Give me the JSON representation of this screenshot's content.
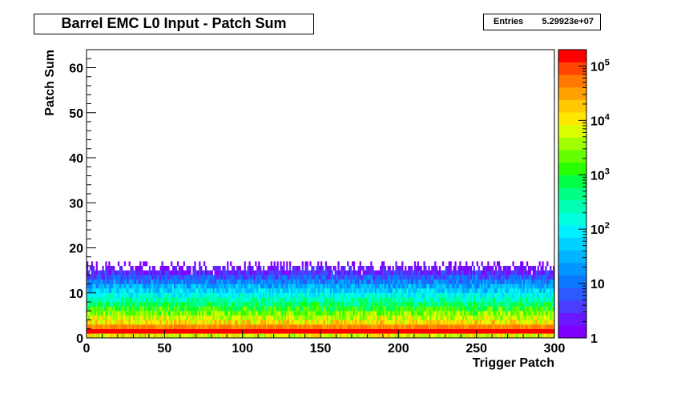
{
  "chart_data": {
    "type": "heatmap",
    "title": "Barrel EMC L0 Input - Patch Sum",
    "xlabel": "Trigger Patch",
    "ylabel": "Patch Sum",
    "xlim": [
      0,
      300
    ],
    "ylim": [
      0,
      64
    ],
    "x_ticks": [
      "0",
      "50",
      "100",
      "150",
      "200",
      "250",
      "300"
    ],
    "y_ticks": [
      "0",
      "10",
      "20",
      "30",
      "40",
      "50",
      "60"
    ],
    "z_scale": "log",
    "z_range": [
      1,
      200000
    ],
    "z_ticks": [
      {
        "value": 1,
        "base": "1",
        "exp": ""
      },
      {
        "value": 10,
        "base": "10",
        "exp": ""
      },
      {
        "value": 100,
        "base": "10",
        "exp": "2"
      },
      {
        "value": 1000,
        "base": "10",
        "exp": "3"
      },
      {
        "value": 10000,
        "base": "10",
        "exp": "4"
      },
      {
        "value": 100000,
        "base": "10",
        "exp": "5"
      }
    ],
    "palette": [
      "#7f00ff",
      "#6a18ff",
      "#4b3cff",
      "#2d5aff",
      "#0a78ff",
      "#0096ff",
      "#00b4ff",
      "#00d2ff",
      "#00f0ff",
      "#00ffdc",
      "#00ffb4",
      "#00ff82",
      "#00ff46",
      "#28ff00",
      "#64ff00",
      "#a0ff00",
      "#dcff00",
      "#ffe600",
      "#ffc800",
      "#ffa000",
      "#ff7800",
      "#ff4600",
      "#ff0000"
    ],
    "grid": false,
    "legend": "colorbar-right",
    "stats": {
      "label": "Entries",
      "value": "5.29923e+07"
    }
  }
}
